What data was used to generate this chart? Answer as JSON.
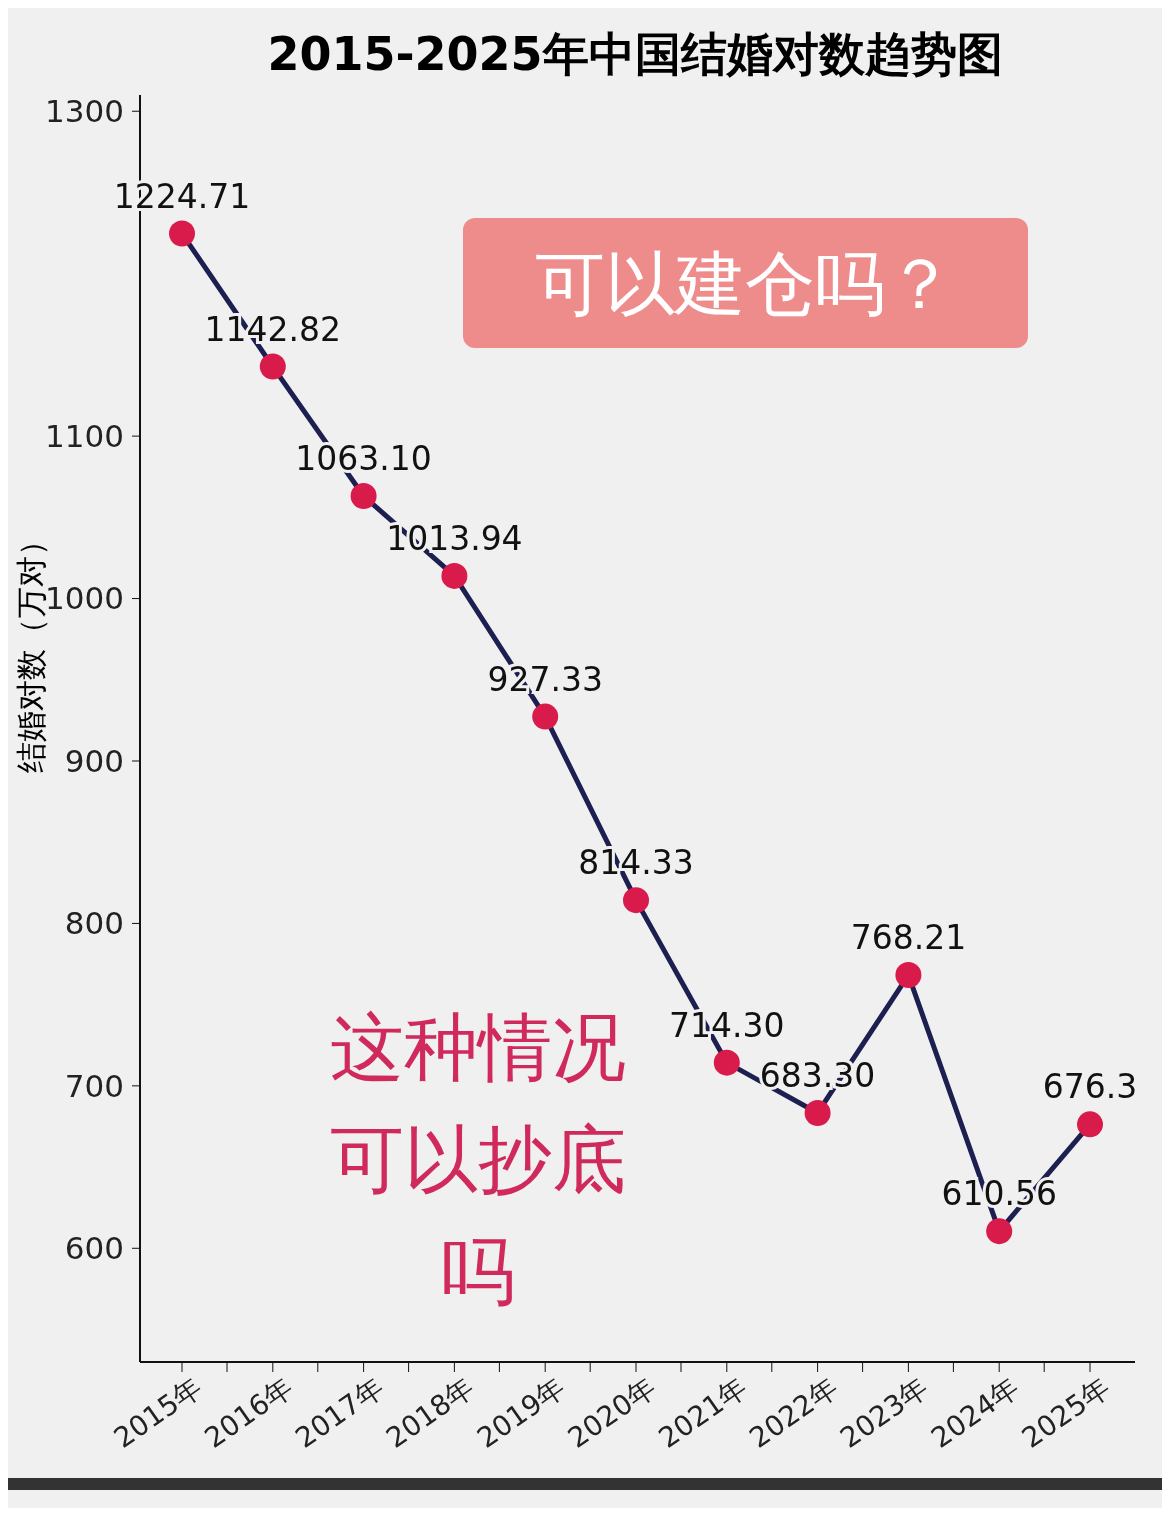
{
  "chart_data": {
    "type": "line",
    "title": "2015-2025年中国结婚对数趋势图",
    "ylabel": "结婚对数（万对）",
    "categories": [
      "2015年",
      "2016年",
      "2017年",
      "2018年",
      "2019年",
      "2020年",
      "2021年",
      "2022年",
      "2023年",
      "2024年",
      "2025年"
    ],
    "series": [
      {
        "color": "#1c1f4f",
        "values": [
          1224.71,
          1142.82,
          1063.1,
          1013.94,
          927.33,
          814.33,
          714.3,
          683.3,
          768.21,
          610.56,
          676.3
        ],
        "value_labels": [
          "1224.71",
          "1142.82",
          "1063.10",
          "1013.94",
          "927.33",
          "814.33",
          "714.30",
          "683.30",
          "768.21",
          "610.56",
          "676.3"
        ]
      }
    ],
    "ylim": [
      530,
      1310
    ],
    "yticks": [
      600,
      700,
      800,
      900,
      1000,
      1100,
      1300
    ],
    "marker": "circle",
    "grid": false,
    "annotations": [
      "可以建仓吗？",
      "这种情况可以抄底吗"
    ]
  }
}
